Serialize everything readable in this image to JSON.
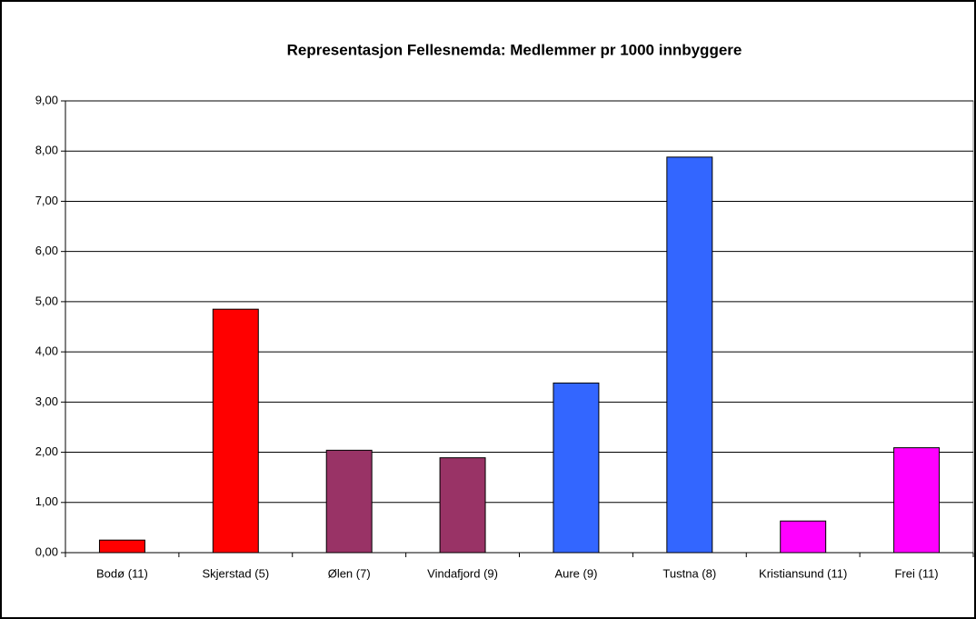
{
  "chart_data": {
    "type": "bar",
    "title": "Representasjon Fellesnemda: Medlemmer pr 1000 innbyggere",
    "categories": [
      "Bodø (11)",
      "Skjerstad (5)",
      "Ølen (7)",
      "Vindafjord (9)",
      "Aure (9)",
      "Tustna (8)",
      "Kristiansund (11)",
      "Frei (11)"
    ],
    "values": [
      0.25,
      4.85,
      2.04,
      1.89,
      3.38,
      7.88,
      0.63,
      2.09
    ],
    "colors": [
      "#ff0000",
      "#ff0000",
      "#993366",
      "#993366",
      "#3366ff",
      "#3366ff",
      "#ff00ff",
      "#ff00ff"
    ],
    "ylim": [
      0,
      9
    ],
    "yticks": [
      {
        "value": 0,
        "label": "0,00"
      },
      {
        "value": 1,
        "label": "1,00"
      },
      {
        "value": 2,
        "label": "2,00"
      },
      {
        "value": 3,
        "label": "3,00"
      },
      {
        "value": 4,
        "label": "4,00"
      },
      {
        "value": 5,
        "label": "5,00"
      },
      {
        "value": 6,
        "label": "6,00"
      },
      {
        "value": 7,
        "label": "7,00"
      },
      {
        "value": 8,
        "label": "8,00"
      },
      {
        "value": 9,
        "label": "9,00"
      }
    ],
    "grid": true
  }
}
